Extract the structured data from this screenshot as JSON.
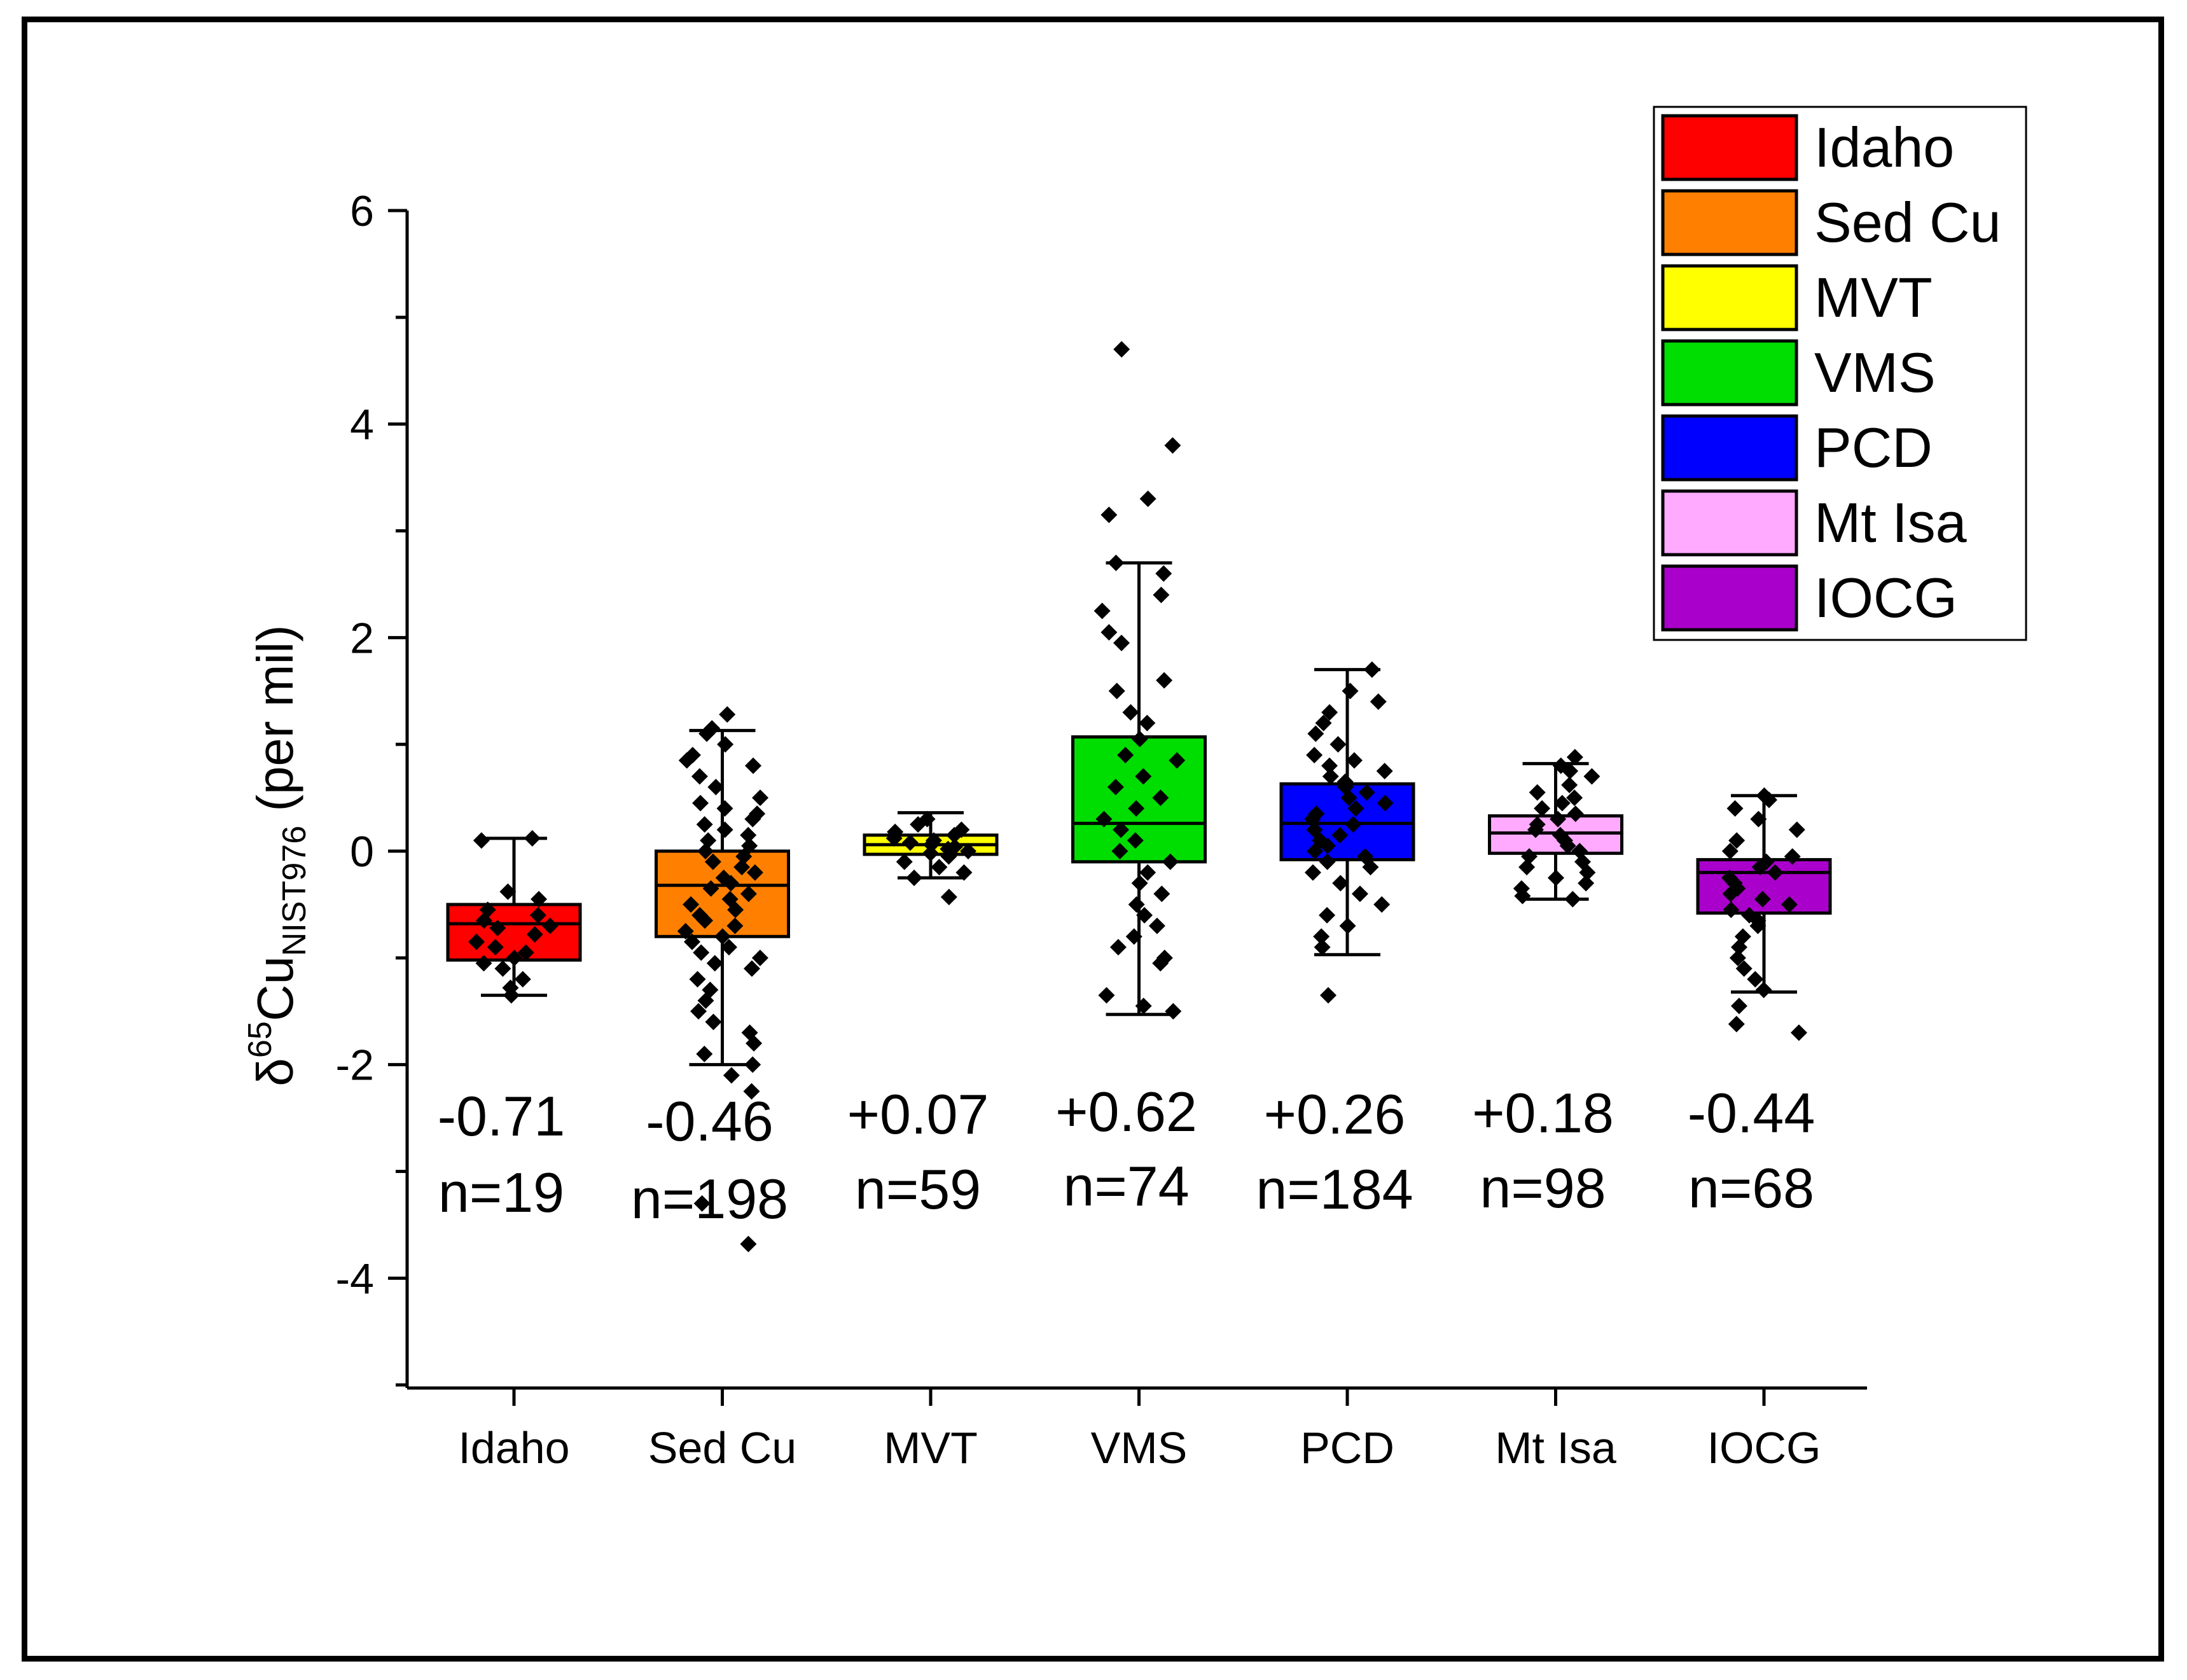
{
  "chart_data": {
    "type": "box",
    "title": "",
    "xlabel": "",
    "ylabel": {
      "delta": "δ",
      "mass": "65",
      "element": "Cu",
      "standard": "NIST976",
      "unit": " (per mil)"
    },
    "ylim": [
      -5,
      6
    ],
    "yticks": [
      6,
      4,
      2,
      0,
      -2,
      -4
    ],
    "ytick_labels": [
      "6",
      "4",
      "2",
      "0",
      "-2",
      "-4"
    ],
    "grid": false,
    "legend_position": "top-right",
    "categories": [
      "Idaho",
      "Sed Cu",
      "MVT",
      "VMS",
      "PCD",
      "Mt Isa",
      "IOCG"
    ],
    "series": [
      {
        "name": "Idaho",
        "color": "#ff0000",
        "min": -1.35,
        "q1": -1.02,
        "median": -0.68,
        "q3": -0.5,
        "max": 0.12,
        "mean_label": "-0.71",
        "n_label": "n=19",
        "points": [
          0.12,
          0.1,
          -0.38,
          -0.45,
          -0.55,
          -0.6,
          -0.65,
          -0.7,
          -0.72,
          -0.78,
          -0.85,
          -0.9,
          -0.95,
          -1.0,
          -1.05,
          -1.1,
          -1.2,
          -1.28,
          -1.35
        ]
      },
      {
        "name": "Sed Cu",
        "color": "#ff8000",
        "min": -2.0,
        "q1": -0.8,
        "median": -0.32,
        "q3": 0.0,
        "max": 1.13,
        "mean_label": "-0.46",
        "n_label": "n=198",
        "points": [
          1.28,
          1.15,
          1.1,
          1.0,
          0.9,
          0.85,
          0.8,
          0.7,
          0.6,
          0.5,
          0.45,
          0.4,
          0.35,
          0.3,
          0.25,
          0.2,
          0.15,
          0.1,
          0.05,
          0.0,
          -0.05,
          -0.1,
          -0.15,
          -0.2,
          -0.25,
          -0.3,
          -0.35,
          -0.4,
          -0.45,
          -0.5,
          -0.55,
          -0.6,
          -0.65,
          -0.7,
          -0.75,
          -0.8,
          -0.85,
          -0.9,
          -0.95,
          -1.0,
          -1.05,
          -1.1,
          -1.2,
          -1.3,
          -1.4,
          -1.5,
          -1.6,
          -1.7,
          -1.8,
          -1.9,
          -2.0,
          -2.1,
          -2.25,
          -3.3,
          -3.68
        ]
      },
      {
        "name": "MVT",
        "color": "#ffff00",
        "min": -0.25,
        "q1": -0.03,
        "median": 0.06,
        "q3": 0.15,
        "max": 0.36,
        "mean_label": "+0.07",
        "n_label": "n=59",
        "points": [
          0.3,
          0.25,
          0.2,
          0.18,
          0.15,
          0.12,
          0.1,
          0.08,
          0.06,
          0.04,
          0.02,
          0.0,
          -0.02,
          -0.05,
          -0.1,
          -0.15,
          -0.2,
          -0.25,
          -0.43
        ]
      },
      {
        "name": "VMS",
        "color": "#00dd00",
        "min": -1.53,
        "q1": -0.1,
        "median": 0.26,
        "q3": 1.07,
        "max": 2.7,
        "mean_label": "+0.62",
        "n_label": "n=74",
        "points": [
          4.7,
          3.8,
          3.3,
          3.15,
          2.7,
          2.6,
          2.4,
          2.25,
          2.05,
          1.95,
          1.6,
          1.5,
          1.3,
          1.2,
          1.05,
          0.9,
          0.85,
          0.7,
          0.6,
          0.5,
          0.4,
          0.3,
          0.2,
          0.1,
          0.0,
          -0.1,
          -0.2,
          -0.3,
          -0.4,
          -0.5,
          -0.6,
          -0.7,
          -0.8,
          -0.9,
          -1.0,
          -1.05,
          -1.35,
          -1.45,
          -1.5
        ]
      },
      {
        "name": "PCD",
        "color": "#0000ff",
        "min": -0.97,
        "q1": -0.08,
        "median": 0.26,
        "q3": 0.63,
        "max": 1.7,
        "mean_label": "+0.26",
        "n_label": "n=184",
        "points": [
          1.7,
          1.5,
          1.4,
          1.3,
          1.2,
          1.1,
          1.0,
          0.9,
          0.85,
          0.8,
          0.75,
          0.7,
          0.65,
          0.6,
          0.55,
          0.5,
          0.45,
          0.4,
          0.35,
          0.3,
          0.25,
          0.2,
          0.15,
          0.1,
          0.05,
          0.0,
          -0.05,
          -0.1,
          -0.15,
          -0.2,
          -0.3,
          -0.4,
          -0.5,
          -0.6,
          -0.7,
          -0.8,
          -0.9,
          -1.35
        ]
      },
      {
        "name": "Mt Isa",
        "color": "#ffaaff",
        "min": -0.45,
        "q1": -0.02,
        "median": 0.17,
        "q3": 0.33,
        "max": 0.82,
        "mean_label": "+0.18",
        "n_label": "n=98",
        "points": [
          0.88,
          0.8,
          0.75,
          0.7,
          0.62,
          0.55,
          0.5,
          0.45,
          0.4,
          0.35,
          0.3,
          0.25,
          0.2,
          0.15,
          0.1,
          0.05,
          0.0,
          -0.05,
          -0.1,
          -0.15,
          -0.2,
          -0.25,
          -0.3,
          -0.35,
          -0.42,
          -0.45
        ]
      },
      {
        "name": "IOCG",
        "color": "#aa00cc",
        "min": -1.32,
        "q1": -0.58,
        "median": -0.2,
        "q3": -0.08,
        "max": 0.52,
        "mean_label": "-0.44",
        "n_label": "n=68",
        "points": [
          0.52,
          0.48,
          0.4,
          0.3,
          0.2,
          0.1,
          0.0,
          -0.05,
          -0.1,
          -0.15,
          -0.2,
          -0.25,
          -0.3,
          -0.35,
          -0.4,
          -0.45,
          -0.5,
          -0.55,
          -0.6,
          -0.65,
          -0.7,
          -0.8,
          -0.9,
          -1.0,
          -1.1,
          -1.2,
          -1.3,
          -1.45,
          -1.62,
          -1.7
        ]
      }
    ]
  }
}
